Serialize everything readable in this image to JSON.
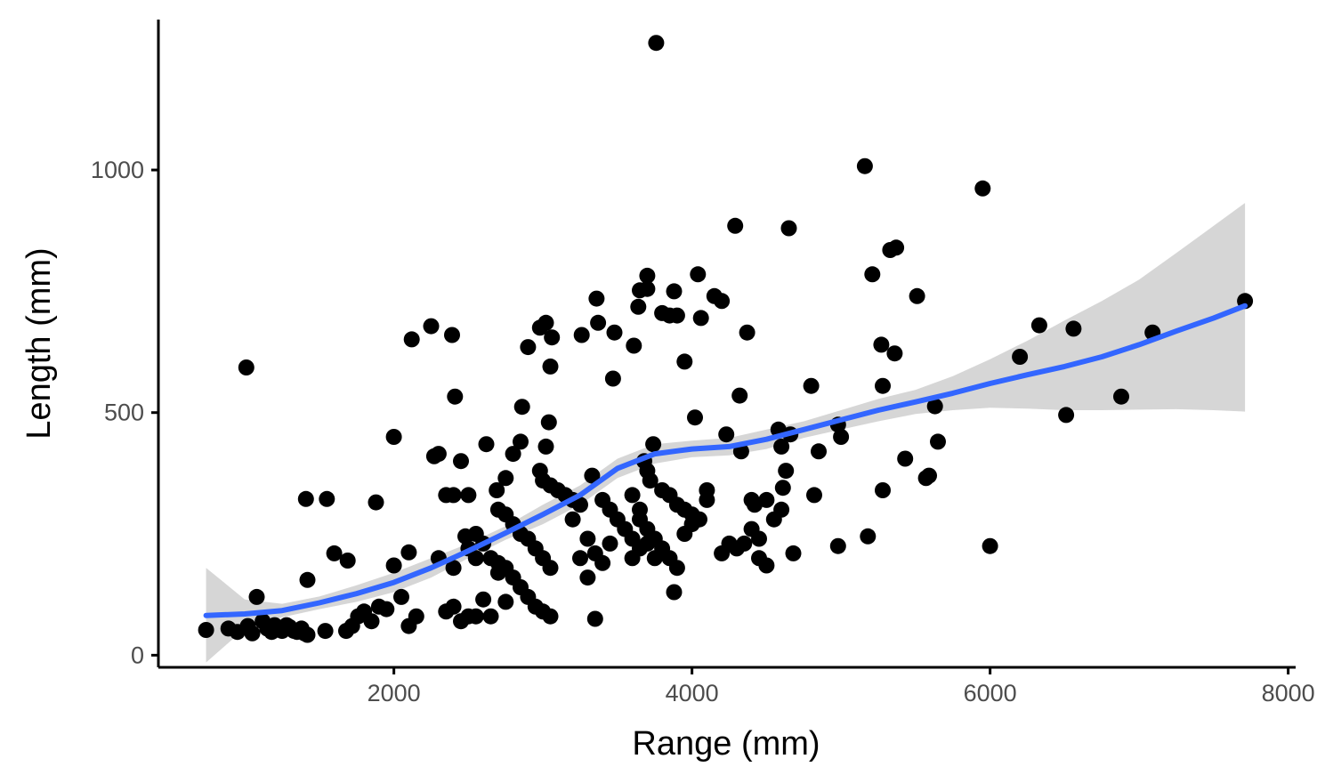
{
  "chart_data": {
    "type": "scatter",
    "title": "",
    "xlabel": "Range (mm)",
    "ylabel": "Length (mm)",
    "xlim": [
      420,
      8050
    ],
    "ylim": [
      -25,
      1310
    ],
    "x_ticks": [
      2000,
      4000,
      6000,
      8000
    ],
    "x_tick_labels": [
      "2000",
      "4000",
      "6000",
      "8000"
    ],
    "y_ticks": [
      0,
      500,
      1000
    ],
    "y_tick_labels": [
      "0",
      "500",
      "1000"
    ],
    "grid": false,
    "legend": "none",
    "colors": {
      "points": "#000000",
      "smooth_line": "#3366FF",
      "confidence_band": "#999999",
      "axis": "#000000",
      "tick_text": "#4d4d4d"
    },
    "points": [
      [
        740,
        52
      ],
      [
        1010,
        593
      ],
      [
        1080,
        120
      ],
      [
        890,
        55
      ],
      [
        950,
        48
      ],
      [
        1020,
        60
      ],
      [
        1050,
        45
      ],
      [
        1150,
        55
      ],
      [
        1200,
        62
      ],
      [
        1250,
        50
      ],
      [
        1300,
        58
      ],
      [
        1350,
        48
      ],
      [
        1400,
        45
      ],
      [
        1120,
        70
      ],
      [
        1180,
        48
      ],
      [
        1230,
        55
      ],
      [
        1280,
        62
      ],
      [
        1330,
        50
      ],
      [
        1380,
        55
      ],
      [
        1420,
        42
      ],
      [
        1410,
        322
      ],
      [
        1550,
        322
      ],
      [
        1420,
        155
      ],
      [
        1600,
        210
      ],
      [
        1690,
        195
      ],
      [
        1540,
        50
      ],
      [
        1680,
        50
      ],
      [
        1720,
        60
      ],
      [
        1760,
        80
      ],
      [
        1800,
        90
      ],
      [
        1850,
        70
      ],
      [
        1900,
        100
      ],
      [
        1950,
        95
      ],
      [
        2000,
        450
      ],
      [
        1880,
        315
      ],
      [
        2000,
        185
      ],
      [
        2050,
        120
      ],
      [
        2100,
        212
      ],
      [
        2100,
        60
      ],
      [
        2150,
        80
      ],
      [
        2120,
        651
      ],
      [
        2250,
        678
      ],
      [
        2300,
        415
      ],
      [
        2270,
        410
      ],
      [
        2350,
        330
      ],
      [
        2400,
        330
      ],
      [
        2390,
        660
      ],
      [
        2410,
        533
      ],
      [
        2450,
        400
      ],
      [
        2500,
        330
      ],
      [
        2480,
        245
      ],
      [
        2550,
        250
      ],
      [
        2300,
        200
      ],
      [
        2350,
        90
      ],
      [
        2400,
        100
      ],
      [
        2450,
        70
      ],
      [
        2500,
        80
      ],
      [
        2550,
        80
      ],
      [
        2600,
        115
      ],
      [
        2650,
        80
      ],
      [
        2620,
        435
      ],
      [
        2690,
        340
      ],
      [
        2750,
        365
      ],
      [
        2800,
        415
      ],
      [
        2850,
        440
      ],
      [
        2900,
        635
      ],
      [
        2980,
        675
      ],
      [
        3020,
        685
      ],
      [
        3060,
        655
      ],
      [
        3050,
        595
      ],
      [
        2860,
        512
      ],
      [
        3040,
        480
      ],
      [
        3020,
        430
      ],
      [
        2980,
        380
      ],
      [
        3000,
        360
      ],
      [
        3050,
        350
      ],
      [
        3100,
        340
      ],
      [
        3150,
        330
      ],
      [
        3200,
        320
      ],
      [
        3250,
        310
      ],
      [
        2700,
        300
      ],
      [
        2750,
        290
      ],
      [
        2800,
        270
      ],
      [
        2850,
        250
      ],
      [
        2900,
        240
      ],
      [
        2950,
        220
      ],
      [
        3000,
        200
      ],
      [
        3050,
        180
      ],
      [
        2700,
        190
      ],
      [
        2750,
        180
      ],
      [
        2800,
        160
      ],
      [
        2850,
        140
      ],
      [
        2900,
        120
      ],
      [
        2950,
        100
      ],
      [
        3000,
        90
      ],
      [
        3050,
        80
      ],
      [
        2600,
        230
      ],
      [
        2650,
        200
      ],
      [
        2700,
        170
      ],
      [
        2750,
        110
      ],
      [
        3260,
        660
      ],
      [
        3360,
        735
      ],
      [
        3370,
        685
      ],
      [
        3480,
        665
      ],
      [
        3470,
        570
      ],
      [
        3330,
        370
      ],
      [
        3400,
        320
      ],
      [
        3450,
        300
      ],
      [
        3500,
        280
      ],
      [
        3550,
        260
      ],
      [
        3600,
        240
      ],
      [
        3650,
        220
      ],
      [
        3300,
        240
      ],
      [
        3350,
        210
      ],
      [
        3400,
        190
      ],
      [
        3450,
        230
      ],
      [
        3300,
        160
      ],
      [
        3350,
        75
      ],
      [
        3250,
        200
      ],
      [
        3200,
        280
      ],
      [
        3610,
        638
      ],
      [
        3640,
        718
      ],
      [
        3650,
        752
      ],
      [
        3700,
        782
      ],
      [
        3700,
        755
      ],
      [
        3760,
        1262
      ],
      [
        3800,
        705
      ],
      [
        3850,
        700
      ],
      [
        3880,
        750
      ],
      [
        3900,
        700
      ],
      [
        3950,
        605
      ],
      [
        4040,
        785
      ],
      [
        4060,
        695
      ],
      [
        4020,
        490
      ],
      [
        3740,
        435
      ],
      [
        3680,
        400
      ],
      [
        3700,
        380
      ],
      [
        3720,
        360
      ],
      [
        3800,
        340
      ],
      [
        3850,
        330
      ],
      [
        3900,
        310
      ],
      [
        3950,
        300
      ],
      [
        4000,
        290
      ],
      [
        4050,
        280
      ],
      [
        4100,
        320
      ],
      [
        3650,
        280
      ],
      [
        3700,
        260
      ],
      [
        3750,
        240
      ],
      [
        3800,
        220
      ],
      [
        3850,
        200
      ],
      [
        3750,
        200
      ],
      [
        3900,
        180
      ],
      [
        3880,
        130
      ],
      [
        3950,
        250
      ],
      [
        4000,
        270
      ],
      [
        4100,
        340
      ],
      [
        3600,
        330
      ],
      [
        3650,
        300
      ],
      [
        3700,
        230
      ],
      [
        3600,
        200
      ],
      [
        4150,
        740
      ],
      [
        4200,
        730
      ],
      [
        4230,
        455
      ],
      [
        4290,
        885
      ],
      [
        4320,
        535
      ],
      [
        4370,
        665
      ],
      [
        4330,
        420
      ],
      [
        4400,
        320
      ],
      [
        4420,
        310
      ],
      [
        4500,
        320
      ],
      [
        4550,
        280
      ],
      [
        4600,
        300
      ],
      [
        4400,
        260
      ],
      [
        4450,
        240
      ],
      [
        4300,
        220
      ],
      [
        4200,
        210
      ],
      [
        4250,
        230
      ],
      [
        4350,
        230
      ],
      [
        4450,
        200
      ],
      [
        4500,
        185
      ],
      [
        4580,
        465
      ],
      [
        4600,
        430
      ],
      [
        4660,
        455
      ],
      [
        4650,
        880
      ],
      [
        4610,
        345
      ],
      [
        4630,
        380
      ],
      [
        4680,
        210
      ],
      [
        4800,
        555
      ],
      [
        4850,
        420
      ],
      [
        4820,
        330
      ],
      [
        4980,
        475
      ],
      [
        5000,
        450
      ],
      [
        4980,
        225
      ],
      [
        5160,
        1008
      ],
      [
        5210,
        785
      ],
      [
        5180,
        245
      ],
      [
        5270,
        640
      ],
      [
        5280,
        555
      ],
      [
        5280,
        340
      ],
      [
        5330,
        835
      ],
      [
        5370,
        840
      ],
      [
        5360,
        622
      ],
      [
        5430,
        405
      ],
      [
        5510,
        740
      ],
      [
        5570,
        365
      ],
      [
        5590,
        370
      ],
      [
        5630,
        513
      ],
      [
        5650,
        440
      ],
      [
        5950,
        962
      ],
      [
        6000,
        225
      ],
      [
        6200,
        615
      ],
      [
        6330,
        680
      ],
      [
        6510,
        495
      ],
      [
        6560,
        673
      ],
      [
        6880,
        533
      ],
      [
        7090,
        665
      ],
      [
        7710,
        730
      ],
      [
        2500,
        220
      ],
      [
        2550,
        200
      ],
      [
        2400,
        180
      ]
    ],
    "smooth": {
      "x": [
        740,
        1000,
        1250,
        1500,
        1750,
        2000,
        2250,
        2500,
        2750,
        3000,
        3250,
        3500,
        3750,
        4000,
        4250,
        4500,
        4750,
        5000,
        5250,
        5500,
        5750,
        6000,
        6250,
        6500,
        6750,
        7000,
        7250,
        7500,
        7710
      ],
      "y": [
        82,
        85,
        92,
        108,
        127,
        150,
        180,
        215,
        252,
        290,
        330,
        385,
        415,
        425,
        430,
        445,
        465,
        485,
        505,
        522,
        540,
        560,
        578,
        595,
        615,
        640,
        668,
        695,
        720
      ],
      "lower": [
        -15,
        55,
        78,
        95,
        110,
        130,
        160,
        200,
        238,
        270,
        310,
        365,
        395,
        408,
        412,
        425,
        448,
        465,
        482,
        497,
        505,
        510,
        508,
        505,
        505,
        506,
        507,
        505,
        502
      ],
      "upper": [
        180,
        115,
        106,
        121,
        144,
        170,
        200,
        230,
        266,
        310,
        350,
        405,
        435,
        442,
        448,
        465,
        482,
        505,
        528,
        547,
        575,
        610,
        648,
        690,
        730,
        774,
        829,
        885,
        932
      ]
    }
  }
}
